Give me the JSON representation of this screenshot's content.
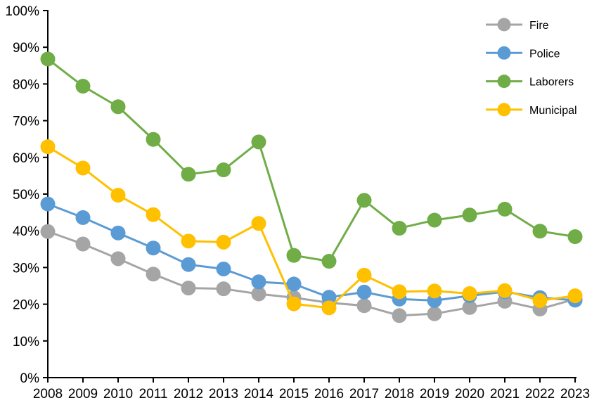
{
  "chart_data": {
    "type": "line",
    "title": "",
    "xlabel": "",
    "ylabel": "",
    "background_color": "#FFFFFF",
    "axis_color": "#000000",
    "grid": false,
    "legend_position": "top-right",
    "ylim": [
      0,
      100
    ],
    "y_tick_step": 10,
    "y_tick_labels": [
      "0%",
      "10%",
      "20%",
      "30%",
      "40%",
      "50%",
      "60%",
      "70%",
      "80%",
      "90%",
      "100%"
    ],
    "categories": [
      "2008",
      "2009",
      "2010",
      "2011",
      "2012",
      "2013",
      "2014",
      "2015",
      "2016",
      "2017",
      "2018",
      "2019",
      "2020",
      "2021",
      "2022",
      "2023"
    ],
    "series": [
      {
        "name": "Fire",
        "color": "#A5A5A5",
        "values": [
          39.8,
          36.4,
          32.4,
          28.2,
          24.4,
          24.2,
          22.8,
          21.8,
          20.4,
          19.6,
          16.9,
          17.4,
          19.1,
          20.8,
          18.7,
          21.4
        ]
      },
      {
        "name": "Police",
        "color": "#5B9BD5",
        "values": [
          47.3,
          43.6,
          39.4,
          35.3,
          30.8,
          29.6,
          26.1,
          25.5,
          21.9,
          23.3,
          21.4,
          21.0,
          22.3,
          23.4,
          21.8,
          21.1
        ]
      },
      {
        "name": "Laborers",
        "color": "#70AD47",
        "values": [
          86.8,
          79.4,
          73.8,
          64.9,
          55.4,
          56.6,
          64.2,
          33.3,
          31.7,
          48.3,
          40.7,
          42.9,
          44.3,
          45.9,
          39.9,
          38.4
        ]
      },
      {
        "name": "Municipal",
        "color": "#FFC000",
        "values": [
          62.9,
          57.1,
          49.7,
          44.4,
          37.2,
          36.9,
          42.0,
          20.1,
          19.0,
          27.9,
          23.4,
          23.6,
          22.9,
          23.7,
          21.0,
          22.3
        ]
      }
    ]
  }
}
